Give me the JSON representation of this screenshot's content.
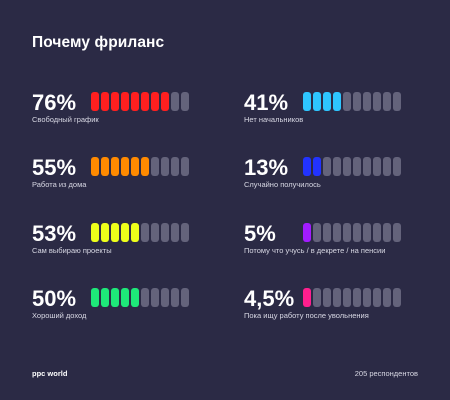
{
  "title": "Почему фриланс",
  "footer": {
    "brand": "ppc world",
    "respondents": "205 респондентов"
  },
  "chart_data": {
    "type": "bar",
    "title": "Почему фриланс",
    "segments_total": 10,
    "items": [
      {
        "label": "76%",
        "value": 76,
        "caption": "Свободный график",
        "filled": 8,
        "color": "#ff1f1f"
      },
      {
        "label": "41%",
        "value": 41,
        "caption": "Нет начальников",
        "filled": 4,
        "color": "#2ec6ff"
      },
      {
        "label": "55%",
        "value": 55,
        "caption": "Работа из дома",
        "filled": 6,
        "color": "#ff8a00"
      },
      {
        "label": "13%",
        "value": 13,
        "caption": "Случайно получилось",
        "filled": 2,
        "color": "#2233ff"
      },
      {
        "label": "53%",
        "value": 53,
        "caption": "Сам выбираю проекты",
        "filled": 5,
        "color": "#eeff1a"
      },
      {
        "label": "5%",
        "value": 5,
        "caption": "Потому что учусь / в декрете / на пенсии",
        "filled": 1,
        "color": "#a21cff"
      },
      {
        "label": "50%",
        "value": 50,
        "caption": "Хороший доход",
        "filled": 5,
        "color": "#1ee879"
      },
      {
        "label": "4,5%",
        "value": 4.5,
        "caption": "Пока ищу работу после увольнения",
        "filled": 1,
        "color": "#ff1f8e"
      }
    ]
  }
}
